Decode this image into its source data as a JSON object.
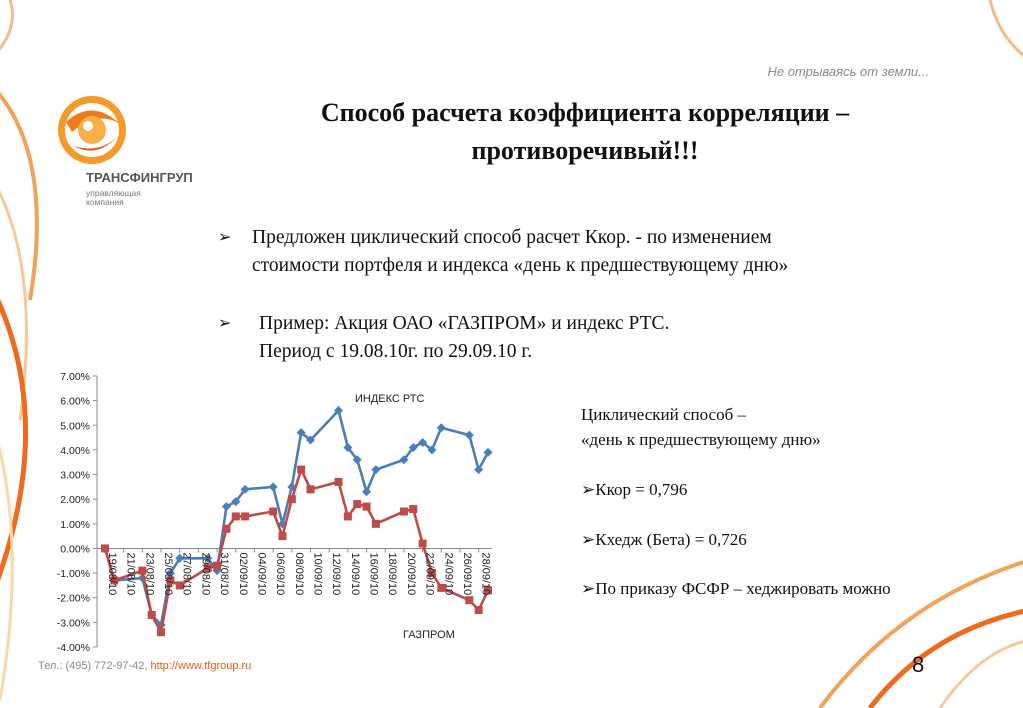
{
  "header": {
    "tagline": "Не отрываясь от земли...",
    "title_line1": "Способ расчета коэффициента корреляции –",
    "title_line2": "противоречивый!!!"
  },
  "logo": {
    "name": "ТРАНСФИНГРУП",
    "subtitle_line1": "управляющая",
    "subtitle_line2": "компания"
  },
  "bullets": [
    {
      "line1": "Предложен циклический способ расчет Ккор. - по изменением",
      "line2": "стоимости портфеля и индекса «день к  предшествующему дню»"
    },
    {
      "line1": "Пример: Акция ОАО «ГАЗПРОМ»  и индекс РТС.",
      "line2": "Период с 19.08.10г. по 29.09.10 г."
    }
  ],
  "side": {
    "heading_line1": "Циклический способ –",
    "heading_line2": "«день к предшествующему дню»",
    "kkor": "➢Ккор = 0,796",
    "khedge": "➢Кхедж (Бета) = 0,726",
    "fsfr": "➢По приказу ФСФР – хеджировать можно"
  },
  "footer": {
    "phone": "Тел.: (495) 772-97-42,",
    "url": "http://www.tfgroup.ru"
  },
  "page_number": "8",
  "chart_data": {
    "type": "line",
    "ylim": [
      -4,
      7
    ],
    "y_ticks": [
      "7.00%",
      "6.00%",
      "5.00%",
      "4.00%",
      "3.00%",
      "2.00%",
      "1.00%",
      "0.00%",
      "-1.00%",
      "-2.00%",
      "-3.00%",
      "-4.00%"
    ],
    "x_ticks": [
      "19/08/10",
      "21/08/10",
      "23/08/10",
      "25/08/10",
      "27/08/10",
      "29/08/10",
      "31/08/10",
      "02/09/10",
      "04/09/10",
      "06/09/10",
      "08/09/10",
      "10/09/10",
      "12/09/10",
      "14/09/10",
      "16/09/10",
      "18/09/10",
      "20/09/10",
      "22/09/10",
      "24/09/10",
      "26/09/10",
      "28/09/10"
    ],
    "x_range": [
      "2010-08-19",
      "2010-09-29"
    ],
    "series": [
      {
        "name": "ИНДЕКС РТС",
        "color": "#4a7ebb",
        "marker": "diamond",
        "points": [
          [
            "2010-08-19",
            0.0
          ],
          [
            "2010-08-20",
            -1.3
          ],
          [
            "2010-08-23",
            -1.2
          ],
          [
            "2010-08-24",
            -2.7
          ],
          [
            "2010-08-25",
            -3.1
          ],
          [
            "2010-08-26",
            -1.0
          ],
          [
            "2010-08-27",
            -0.4
          ],
          [
            "2010-08-30",
            -0.4
          ],
          [
            "2010-08-31",
            -0.9
          ],
          [
            "2010-09-01",
            1.7
          ],
          [
            "2010-09-02",
            1.9
          ],
          [
            "2010-09-03",
            2.4
          ],
          [
            "2010-09-06",
            2.5
          ],
          [
            "2010-09-07",
            1.0
          ],
          [
            "2010-09-08",
            2.5
          ],
          [
            "2010-09-09",
            4.7
          ],
          [
            "2010-09-10",
            4.4
          ],
          [
            "2010-09-13",
            5.6
          ],
          [
            "2010-09-14",
            4.1
          ],
          [
            "2010-09-15",
            3.6
          ],
          [
            "2010-09-16",
            2.3
          ],
          [
            "2010-09-17",
            3.2
          ],
          [
            "2010-09-20",
            3.6
          ],
          [
            "2010-09-21",
            4.1
          ],
          [
            "2010-09-22",
            4.3
          ],
          [
            "2010-09-23",
            4.0
          ],
          [
            "2010-09-24",
            4.9
          ],
          [
            "2010-09-27",
            4.6
          ],
          [
            "2010-09-28",
            3.2
          ],
          [
            "2010-09-29",
            3.9
          ]
        ]
      },
      {
        "name": "ГАЗПРОМ",
        "color": "#be4b48",
        "marker": "square",
        "points": [
          [
            "2010-08-19",
            0.0
          ],
          [
            "2010-08-20",
            -1.3
          ],
          [
            "2010-08-23",
            -0.9
          ],
          [
            "2010-08-24",
            -2.7
          ],
          [
            "2010-08-25",
            -3.4
          ],
          [
            "2010-08-26",
            -1.3
          ],
          [
            "2010-08-27",
            -1.5
          ],
          [
            "2010-08-30",
            -0.8
          ],
          [
            "2010-08-31",
            -0.7
          ],
          [
            "2010-09-01",
            0.8
          ],
          [
            "2010-09-02",
            1.3
          ],
          [
            "2010-09-03",
            1.3
          ],
          [
            "2010-09-06",
            1.5
          ],
          [
            "2010-09-07",
            0.5
          ],
          [
            "2010-09-08",
            2.0
          ],
          [
            "2010-09-09",
            3.2
          ],
          [
            "2010-09-10",
            2.4
          ],
          [
            "2010-09-13",
            2.7
          ],
          [
            "2010-09-14",
            1.3
          ],
          [
            "2010-09-15",
            1.8
          ],
          [
            "2010-09-16",
            1.7
          ],
          [
            "2010-09-17",
            1.0
          ],
          [
            "2010-09-20",
            1.5
          ],
          [
            "2010-09-21",
            1.6
          ],
          [
            "2010-09-22",
            0.2
          ],
          [
            "2010-09-23",
            -1.0
          ],
          [
            "2010-09-24",
            -1.6
          ],
          [
            "2010-09-27",
            -2.1
          ],
          [
            "2010-09-28",
            -2.5
          ],
          [
            "2010-09-29",
            -1.7
          ]
        ]
      }
    ],
    "line_colors": {
      "axis": "#888888"
    }
  }
}
